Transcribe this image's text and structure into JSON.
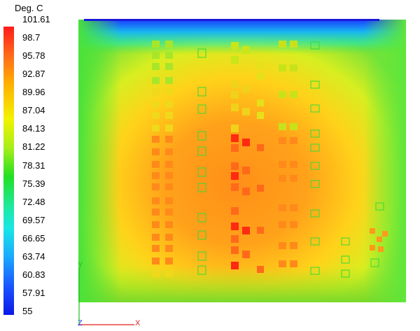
{
  "legend": {
    "title": "Deg. C",
    "ticks": [
      "101.61",
      "98.7",
      "95.78",
      "92.87",
      "89.96",
      "87.04",
      "84.13",
      "81.22",
      "78.31",
      "75.39",
      "72.48",
      "69.57",
      "66.65",
      "63.74",
      "60.83",
      "57.91",
      "55"
    ]
  },
  "axes": {
    "y": "Y",
    "x": "X",
    "z": "Z"
  },
  "colors": {
    "hot": "#ff2a12",
    "warm": "#ffa21a",
    "mid": "#ffd21a",
    "cool": "#49e23a",
    "top_edge": "#1a1ad8",
    "component_green": "#38d838"
  }
}
